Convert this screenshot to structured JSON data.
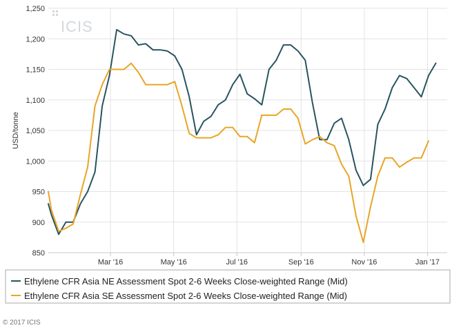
{
  "chart_data": {
    "type": "line",
    "title": "",
    "xlabel": "",
    "ylabel": "USD/tonne",
    "ylim": [
      850,
      1250
    ],
    "y_ticks": [
      850,
      900,
      950,
      1000,
      1050,
      1100,
      1150,
      1200,
      1250
    ],
    "y_tick_labels": [
      "850",
      "900",
      "950",
      "1,000",
      "1,050",
      "1,100",
      "1,150",
      "1,200",
      "1,250"
    ],
    "x_ticks": [
      {
        "date": "2016-03-01",
        "label": "Mar '16"
      },
      {
        "date": "2016-05-01",
        "label": "May '16"
      },
      {
        "date": "2016-07-01",
        "label": "Jul '16"
      },
      {
        "date": "2016-09-01",
        "label": "Sep '16"
      },
      {
        "date": "2016-11-01",
        "label": "Nov '16"
      },
      {
        "date": "2017-01-01",
        "label": "Jan '17"
      }
    ],
    "x_range": [
      "2016-01-01",
      "2017-01-20"
    ],
    "grid": true,
    "legend_position": "bottom",
    "series": [
      {
        "name": "Ethylene CFR Asia NE Assessment Spot 2-6 Weeks Close-weighted Range (Mid)",
        "color": "#27545f",
        "points": [
          [
            "2016-01-01",
            930
          ],
          [
            "2016-01-04",
            912
          ],
          [
            "2016-01-11",
            880
          ],
          [
            "2016-01-18",
            900
          ],
          [
            "2016-01-25",
            900
          ],
          [
            "2016-02-01",
            930
          ],
          [
            "2016-02-08",
            950
          ],
          [
            "2016-02-15",
            982
          ],
          [
            "2016-02-22",
            1090
          ],
          [
            "2016-02-29",
            1140
          ],
          [
            "2016-03-07",
            1215
          ],
          [
            "2016-03-14",
            1208
          ],
          [
            "2016-03-21",
            1205
          ],
          [
            "2016-03-28",
            1190
          ],
          [
            "2016-04-04",
            1192
          ],
          [
            "2016-04-11",
            1182
          ],
          [
            "2016-04-18",
            1182
          ],
          [
            "2016-04-25",
            1180
          ],
          [
            "2016-05-02",
            1172
          ],
          [
            "2016-05-09",
            1150
          ],
          [
            "2016-05-16",
            1105
          ],
          [
            "2016-05-23",
            1043
          ],
          [
            "2016-05-30",
            1065
          ],
          [
            "2016-06-06",
            1073
          ],
          [
            "2016-06-13",
            1092
          ],
          [
            "2016-06-20",
            1100
          ],
          [
            "2016-06-27",
            1125
          ],
          [
            "2016-07-04",
            1142
          ],
          [
            "2016-07-11",
            1110
          ],
          [
            "2016-07-18",
            1102
          ],
          [
            "2016-07-25",
            1092
          ],
          [
            "2016-08-01",
            1150
          ],
          [
            "2016-08-08",
            1165
          ],
          [
            "2016-08-15",
            1190
          ],
          [
            "2016-08-22",
            1190
          ],
          [
            "2016-08-29",
            1180
          ],
          [
            "2016-09-05",
            1165
          ],
          [
            "2016-09-12",
            1095
          ],
          [
            "2016-09-19",
            1035
          ],
          [
            "2016-09-26",
            1035
          ],
          [
            "2016-10-03",
            1062
          ],
          [
            "2016-10-10",
            1070
          ],
          [
            "2016-10-17",
            1035
          ],
          [
            "2016-10-24",
            985
          ],
          [
            "2016-10-31",
            960
          ],
          [
            "2016-11-07",
            970
          ],
          [
            "2016-11-14",
            1060
          ],
          [
            "2016-11-21",
            1085
          ],
          [
            "2016-11-28",
            1120
          ],
          [
            "2016-12-05",
            1140
          ],
          [
            "2016-12-12",
            1135
          ],
          [
            "2016-12-19",
            1120
          ],
          [
            "2016-12-26",
            1105
          ],
          [
            "2017-01-02",
            1140
          ],
          [
            "2017-01-09",
            1160
          ]
        ]
      },
      {
        "name": "Ethylene CFR Asia SE Assessment Spot 2-6 Weeks Close-weighted Range (Mid)",
        "color": "#e8a525",
        "points": [
          [
            "2016-01-01",
            950
          ],
          [
            "2016-01-04",
            920
          ],
          [
            "2016-01-11",
            885
          ],
          [
            "2016-01-18",
            890
          ],
          [
            "2016-01-25",
            897
          ],
          [
            "2016-02-01",
            945
          ],
          [
            "2016-02-08",
            990
          ],
          [
            "2016-02-15",
            1090
          ],
          [
            "2016-02-22",
            1125
          ],
          [
            "2016-02-29",
            1150
          ],
          [
            "2016-03-07",
            1150
          ],
          [
            "2016-03-14",
            1150
          ],
          [
            "2016-03-21",
            1160
          ],
          [
            "2016-03-28",
            1145
          ],
          [
            "2016-04-04",
            1125
          ],
          [
            "2016-04-11",
            1125
          ],
          [
            "2016-04-18",
            1125
          ],
          [
            "2016-04-25",
            1125
          ],
          [
            "2016-05-02",
            1130
          ],
          [
            "2016-05-09",
            1090
          ],
          [
            "2016-05-16",
            1045
          ],
          [
            "2016-05-23",
            1038
          ],
          [
            "2016-05-30",
            1038
          ],
          [
            "2016-06-06",
            1038
          ],
          [
            "2016-06-13",
            1043
          ],
          [
            "2016-06-20",
            1055
          ],
          [
            "2016-06-27",
            1055
          ],
          [
            "2016-07-04",
            1040
          ],
          [
            "2016-07-11",
            1040
          ],
          [
            "2016-07-18",
            1030
          ],
          [
            "2016-07-25",
            1075
          ],
          [
            "2016-08-01",
            1075
          ],
          [
            "2016-08-08",
            1075
          ],
          [
            "2016-08-15",
            1085
          ],
          [
            "2016-08-22",
            1085
          ],
          [
            "2016-08-29",
            1070
          ],
          [
            "2016-09-05",
            1028
          ],
          [
            "2016-09-12",
            1035
          ],
          [
            "2016-09-19",
            1040
          ],
          [
            "2016-09-26",
            1030
          ],
          [
            "2016-10-03",
            1025
          ],
          [
            "2016-10-10",
            995
          ],
          [
            "2016-10-17",
            975
          ],
          [
            "2016-10-24",
            910
          ],
          [
            "2016-10-31",
            867
          ],
          [
            "2016-11-07",
            925
          ],
          [
            "2016-11-14",
            975
          ],
          [
            "2016-11-21",
            1005
          ],
          [
            "2016-11-28",
            1005
          ],
          [
            "2016-12-05",
            990
          ],
          [
            "2016-12-12",
            998
          ],
          [
            "2016-12-19",
            1005
          ],
          [
            "2016-12-26",
            1005
          ],
          [
            "2017-01-02",
            1033
          ]
        ]
      }
    ]
  },
  "branding": {
    "logo_text": "ICIS",
    "copyright": "© 2017 ICIS"
  },
  "colors": {
    "grid": "#e3e3e3",
    "axis": "#c8c8c8",
    "logo": "#d2d8de"
  }
}
